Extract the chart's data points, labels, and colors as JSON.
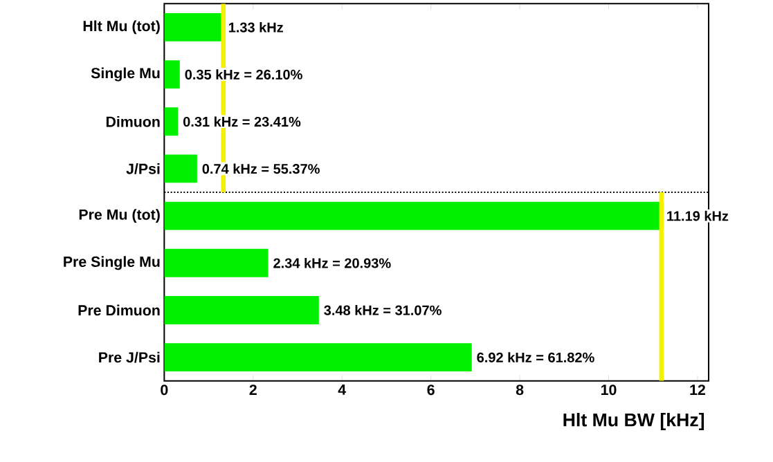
{
  "chart_data": {
    "type": "bar",
    "orientation": "horizontal",
    "xlabel": "Hlt Mu BW [kHz]",
    "categories": [
      "Hlt Mu (tot)",
      "Single Mu",
      "Dimuon",
      "J/Psi",
      "Pre Mu (tot)",
      "Pre Single Mu",
      "Pre Dimuon",
      "Pre J/Psi"
    ],
    "values": [
      1.33,
      0.35,
      0.31,
      0.74,
      11.19,
      2.34,
      3.48,
      6.92
    ],
    "value_labels": [
      "1.33 kHz",
      "0.35 kHz = 26.10%",
      "0.31 kHz = 23.41%",
      "0.74 kHz = 55.37%",
      "11.19 kHz",
      "2.34 kHz = 20.93%",
      "3.48 kHz = 31.07%",
      "6.92 kHz = 61.82%"
    ],
    "color": "#00f000",
    "xlim": [
      0,
      12.25
    ],
    "xticks": [
      0,
      2,
      4,
      6,
      8,
      10,
      12
    ],
    "ref_lines": [
      {
        "axis": "x",
        "value": 1.33,
        "color": "#f5f000",
        "line_style": "solid"
      },
      {
        "axis": "x",
        "value": 11.19,
        "color": "#f5f000",
        "line_style": "solid"
      }
    ]
  }
}
